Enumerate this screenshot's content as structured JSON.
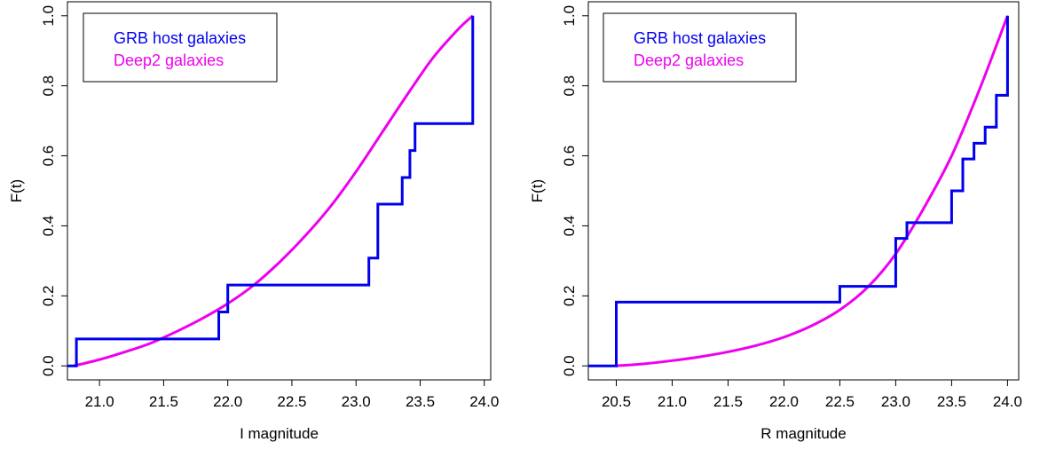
{
  "colors": {
    "grb": "#0000ee",
    "deep2": "#ee00ee",
    "axis": "#000000"
  },
  "chart_data": [
    {
      "type": "line",
      "xlabel": "I magnitude",
      "ylabel": "F(t)",
      "xlim": [
        20.75,
        24.05
      ],
      "ylim": [
        -0.04,
        1.04
      ],
      "xticks": [
        "21.0",
        "21.5",
        "22.0",
        "22.5",
        "23.0",
        "23.5",
        "24.0"
      ],
      "yticks": [
        "0.0",
        "0.2",
        "0.4",
        "0.6",
        "0.8",
        "1.0"
      ],
      "grid": false,
      "legend_position": "top-left",
      "series": [
        {
          "name": "GRB host galaxies",
          "color": "#0000ee",
          "style": "step",
          "x": [
            20.75,
            20.82,
            20.82,
            21.93,
            21.93,
            22.0,
            22.0,
            23.1,
            23.1,
            23.17,
            23.17,
            23.36,
            23.36,
            23.42,
            23.42,
            23.46,
            23.46,
            23.91,
            23.91
          ],
          "y": [
            0.0,
            0.0,
            0.077,
            0.077,
            0.154,
            0.154,
            0.231,
            0.231,
            0.308,
            0.308,
            0.462,
            0.462,
            0.538,
            0.538,
            0.615,
            0.615,
            0.692,
            0.692,
            1.0
          ]
        },
        {
          "name": "Deep2 galaxies",
          "color": "#ee00ee",
          "style": "smooth",
          "x": [
            20.8,
            21.0,
            21.2,
            21.4,
            21.6,
            21.8,
            22.0,
            22.2,
            22.4,
            22.6,
            22.8,
            23.0,
            23.2,
            23.4,
            23.6,
            23.8,
            23.91
          ],
          "y": [
            0.0,
            0.018,
            0.04,
            0.065,
            0.098,
            0.135,
            0.178,
            0.23,
            0.295,
            0.37,
            0.455,
            0.555,
            0.665,
            0.775,
            0.88,
            0.963,
            1.0
          ]
        }
      ]
    },
    {
      "type": "line",
      "xlabel": "R magnitude",
      "ylabel": "F(t)",
      "xlim": [
        20.25,
        24.1
      ],
      "ylim": [
        -0.04,
        1.04
      ],
      "xticks": [
        "20.5",
        "21.0",
        "21.5",
        "22.0",
        "22.5",
        "23.0",
        "23.5",
        "24.0"
      ],
      "yticks": [
        "0.0",
        "0.2",
        "0.4",
        "0.6",
        "0.8",
        "1.0"
      ],
      "grid": false,
      "legend_position": "top-left",
      "series": [
        {
          "name": "GRB host galaxies",
          "color": "#0000ee",
          "style": "step",
          "x": [
            20.25,
            20.5,
            20.5,
            22.5,
            22.5,
            23.0,
            23.0,
            23.1,
            23.1,
            23.5,
            23.5,
            23.6,
            23.6,
            23.7,
            23.7,
            23.8,
            23.8,
            23.9,
            23.9,
            24.0,
            24.0
          ],
          "y": [
            0.0,
            0.0,
            0.182,
            0.182,
            0.227,
            0.227,
            0.364,
            0.364,
            0.409,
            0.409,
            0.5,
            0.5,
            0.591,
            0.591,
            0.636,
            0.636,
            0.682,
            0.682,
            0.773,
            0.773,
            1.0
          ]
        },
        {
          "name": "Deep2 galaxies",
          "color": "#ee00ee",
          "style": "smooth",
          "x": [
            20.5,
            20.75,
            21.0,
            21.25,
            21.5,
            21.75,
            22.0,
            22.25,
            22.5,
            22.75,
            23.0,
            23.25,
            23.5,
            23.75,
            24.0
          ],
          "y": [
            0.0,
            0.006,
            0.015,
            0.026,
            0.04,
            0.058,
            0.082,
            0.115,
            0.16,
            0.225,
            0.32,
            0.45,
            0.6,
            0.79,
            1.0
          ]
        }
      ]
    }
  ]
}
